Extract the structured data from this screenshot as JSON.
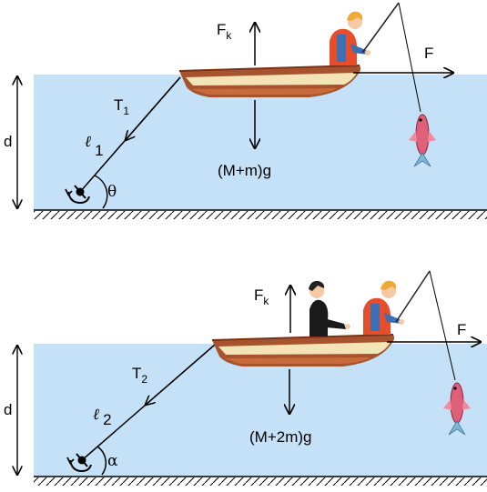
{
  "scene_top": {
    "depth_label": "d",
    "force_up": {
      "main": "F",
      "sub": "k"
    },
    "force_right": "F",
    "tension": {
      "main": "T",
      "sub": "1"
    },
    "rope": {
      "main": "ℓ",
      "sub": "1"
    },
    "angle": "θ",
    "weight": "(M+m)g"
  },
  "scene_bottom": {
    "depth_label": "d",
    "force_up": {
      "main": "F",
      "sub": "k"
    },
    "force_right": "F",
    "tension": {
      "main": "T",
      "sub": "2"
    },
    "rope": {
      "main": "ℓ",
      "sub": "2"
    },
    "angle": "α",
    "weight": "(M+2m)g"
  },
  "colors": {
    "water": "#c4e1f8",
    "boat_hull": "#a7532e",
    "boat_stripe": "#f3e3b6",
    "fish": "#e0607a",
    "life_vest": "#e84d2a",
    "hair": "#f0a838"
  }
}
